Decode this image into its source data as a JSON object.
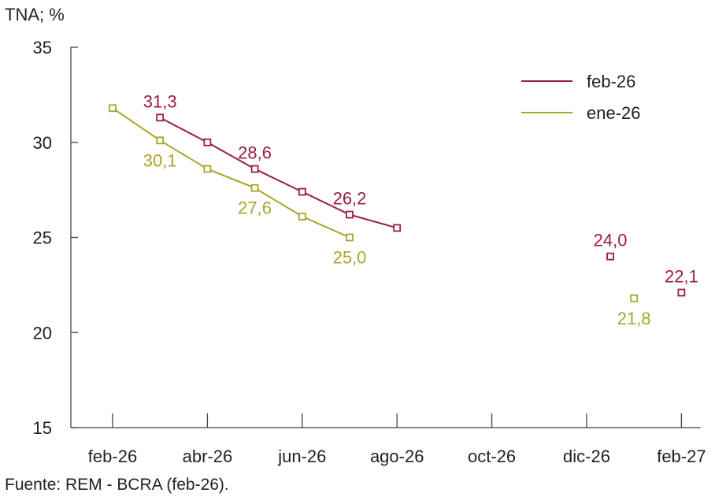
{
  "chart_data": {
    "type": "line",
    "y_unit_label": "TNA; %",
    "ylim": [
      15,
      35
    ],
    "y_ticks": [
      15,
      20,
      25,
      30,
      35
    ],
    "x_tick_labels": [
      "feb-26",
      "abr-26",
      "jun-26",
      "ago-26",
      "oct-26",
      "dic-26",
      "feb-27"
    ],
    "x_tick_months": [
      0,
      2,
      4,
      6,
      8,
      10,
      12
    ],
    "x_month_range": [
      0,
      12.4
    ],
    "grid": false,
    "legend_position": "top-right",
    "series": [
      {
        "name": "feb-26",
        "color": "#9b1b47",
        "line": [
          {
            "month": 1,
            "value": 31.3
          },
          {
            "month": 2,
            "value": 30.0
          },
          {
            "month": 3,
            "value": 28.6
          },
          {
            "month": 4,
            "value": 27.4
          },
          {
            "month": 5,
            "value": 26.2
          },
          {
            "month": 6,
            "value": 25.5
          }
        ],
        "points_only": [
          {
            "month": 10.5,
            "value": 24.0
          },
          {
            "month": 12.0,
            "value": 22.1
          }
        ],
        "data_labels": [
          {
            "month": 1,
            "value": 31.3,
            "text": "31,3",
            "pos": "above"
          },
          {
            "month": 3,
            "value": 28.6,
            "text": "28,6",
            "pos": "above"
          },
          {
            "month": 5,
            "value": 26.2,
            "text": "26,2",
            "pos": "above"
          },
          {
            "month": 10.5,
            "value": 24.0,
            "text": "24,0",
            "pos": "above"
          },
          {
            "month": 12.0,
            "value": 22.1,
            "text": "22,1",
            "pos": "above"
          }
        ]
      },
      {
        "name": "ene-26",
        "color": "#a8a62a",
        "line": [
          {
            "month": 0,
            "value": 31.8
          },
          {
            "month": 1,
            "value": 30.1
          },
          {
            "month": 2,
            "value": 28.6
          },
          {
            "month": 3,
            "value": 27.6
          },
          {
            "month": 4,
            "value": 26.1
          },
          {
            "month": 5,
            "value": 25.0
          }
        ],
        "points_only": [
          {
            "month": 11.0,
            "value": 21.8
          }
        ],
        "data_labels": [
          {
            "month": 1,
            "value": 30.1,
            "text": "30,1",
            "pos": "below"
          },
          {
            "month": 3,
            "value": 27.6,
            "text": "27,6",
            "pos": "below"
          },
          {
            "month": 5,
            "value": 25.0,
            "text": "25,0",
            "pos": "below"
          },
          {
            "month": 11.0,
            "value": 21.8,
            "text": "21,8",
            "pos": "below"
          }
        ]
      }
    ]
  },
  "source": "Fuente: REM - BCRA (feb-26)."
}
